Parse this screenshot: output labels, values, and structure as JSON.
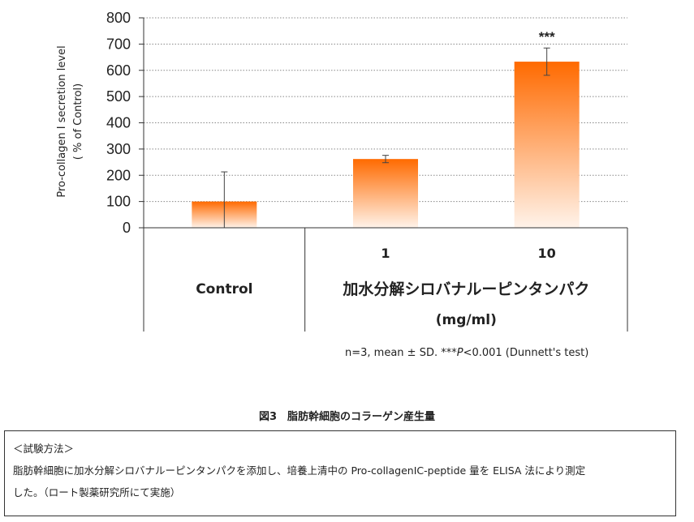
{
  "chart_data": {
    "type": "bar",
    "categories": [
      "Control",
      "1",
      "10"
    ],
    "values": [
      100,
      262,
      633
    ],
    "errors": [
      113,
      14,
      52
    ],
    "significance": [
      "",
      "",
      "***"
    ],
    "ylabel": "Pro-collagen I secretion level",
    "ylabel_unit": "( % of Control)",
    "ylim": [
      0,
      800
    ],
    "yticks": [
      0,
      100,
      200,
      300,
      400,
      500,
      600,
      700,
      800
    ],
    "xgroup_label": "加水分解シロバナルーピンタンパク",
    "xgroup_unit": "(mg/ml)",
    "grid": true,
    "bar_color_top": "#ff6a00",
    "bar_color_bottom": "#fff3ea"
  },
  "note": "n=3, mean ± SD. ***P<0.001  (Dunnett's test)",
  "note_parts": {
    "before": "n=3, mean ± SD. ***",
    "italic": "P",
    "after": "<0.001  (Dunnett's test)"
  },
  "figure_title": "図3　脂肪幹細胞のコラーゲン産生量",
  "method": {
    "heading": "＜試験方法＞",
    "line1": "脂肪幹細胞に加水分解シロバナルーピンタンパクを添加し、培養上清中の Pro-collagenⅠC-peptide 量を ELISA 法により測定",
    "line2": "した。（ロート製薬研究所にて実施）"
  }
}
